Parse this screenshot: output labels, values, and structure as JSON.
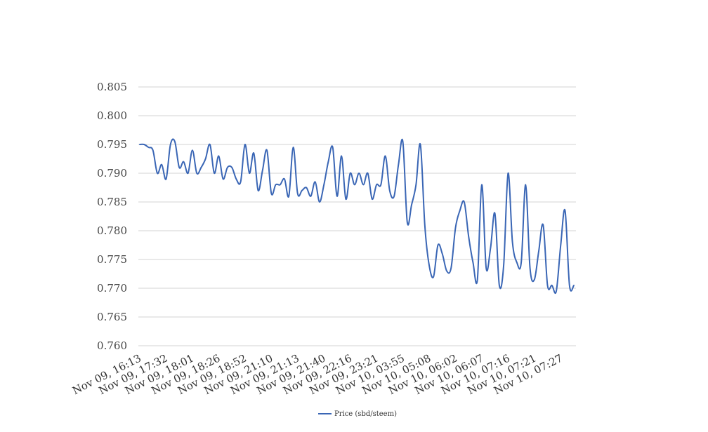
{
  "chart_data": {
    "type": "line",
    "ylim": [
      0.76,
      0.805
    ],
    "yticks": [
      "0.760",
      "0.765",
      "0.770",
      "0.775",
      "0.780",
      "0.785",
      "0.790",
      "0.795",
      "0.800",
      "0.805"
    ],
    "ytick_values": [
      0.76,
      0.765,
      0.77,
      0.775,
      0.78,
      0.785,
      0.79,
      0.795,
      0.8,
      0.805
    ],
    "xticks": [
      "Nov 09, 16:13",
      "Nov 09, 17:32",
      "Nov 09, 18:01",
      "Nov 09, 18:26",
      "Nov 09, 18:52",
      "Nov 09, 21:10",
      "Nov 09, 21:13",
      "Nov 09, 21:40",
      "Nov 09, 22:16",
      "Nov 09, 23:21",
      "Nov 10, 03:55",
      "Nov 10, 05:08",
      "Nov 10, 06:02",
      "Nov 10, 06:07",
      "Nov 10, 07:16",
      "Nov 10, 07:21",
      "Nov 10, 07:27"
    ],
    "grid": true,
    "legend_position": "bottom",
    "series": [
      {
        "name": "Price (sbd/steem)",
        "color": "#3a66b5",
        "values": [
          0.795,
          0.795,
          0.7945,
          0.794,
          0.79,
          0.7915,
          0.789,
          0.795,
          0.7955,
          0.791,
          0.792,
          0.79,
          0.794,
          0.79,
          0.791,
          0.7925,
          0.795,
          0.79,
          0.793,
          0.789,
          0.791,
          0.791,
          0.789,
          0.7885,
          0.795,
          0.79,
          0.7935,
          0.787,
          0.7905,
          0.794,
          0.7865,
          0.788,
          0.788,
          0.789,
          0.786,
          0.7945,
          0.7865,
          0.787,
          0.7875,
          0.786,
          0.7885,
          0.785,
          0.788,
          0.792,
          0.7945,
          0.786,
          0.793,
          0.7855,
          0.79,
          0.788,
          0.79,
          0.788,
          0.79,
          0.7855,
          0.788,
          0.788,
          0.793,
          0.787,
          0.786,
          0.7915,
          0.7955,
          0.7815,
          0.7845,
          0.788,
          0.795,
          0.781,
          0.774,
          0.772,
          0.7775,
          0.776,
          0.773,
          0.7735,
          0.7805,
          0.7835,
          0.785,
          0.779,
          0.7745,
          0.7715,
          0.788,
          0.7735,
          0.777,
          0.783,
          0.7705,
          0.774,
          0.79,
          0.778,
          0.7745,
          0.7745,
          0.788,
          0.7735,
          0.7715,
          0.7765,
          0.781,
          0.7705,
          0.7705,
          0.7695,
          0.7775,
          0.7835,
          0.7705,
          0.7705
        ]
      }
    ]
  }
}
